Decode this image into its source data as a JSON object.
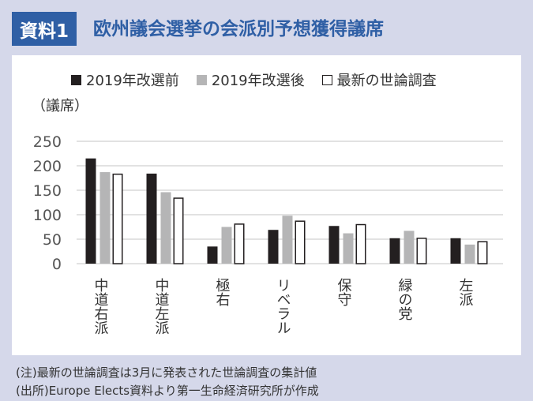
{
  "header": {
    "badge": "資料1",
    "title": "欧州議会選挙の会派別予想獲得議席"
  },
  "chart_data": {
    "type": "bar",
    "ylabel": "（議席）",
    "ylim": [
      0,
      250
    ],
    "yticks": [
      0,
      50,
      100,
      150,
      200,
      250
    ],
    "grid": true,
    "legend_position": "top",
    "categories": [
      "中道右派",
      "中道左派",
      "極右",
      "リベラル",
      "保守",
      "緑の党",
      "左派"
    ],
    "series": [
      {
        "name": "2019年改選前",
        "color": "#231f20",
        "values": [
          215,
          184,
          35,
          69,
          77,
          52,
          52
        ]
      },
      {
        "name": "2019年改選後",
        "color": "#b5b5b6",
        "values": [
          187,
          146,
          75,
          98,
          62,
          67,
          39
        ]
      },
      {
        "name": "最新の世論調査",
        "color": "#ffffff",
        "values": [
          184,
          135,
          82,
          88,
          81,
          53,
          46
        ]
      }
    ]
  },
  "footnotes": [
    "(注)最新の世論調査は3月に発表された世論調査の集計値",
    "(出所)Europe Elects資料より第一生命経済研究所が作成"
  ]
}
